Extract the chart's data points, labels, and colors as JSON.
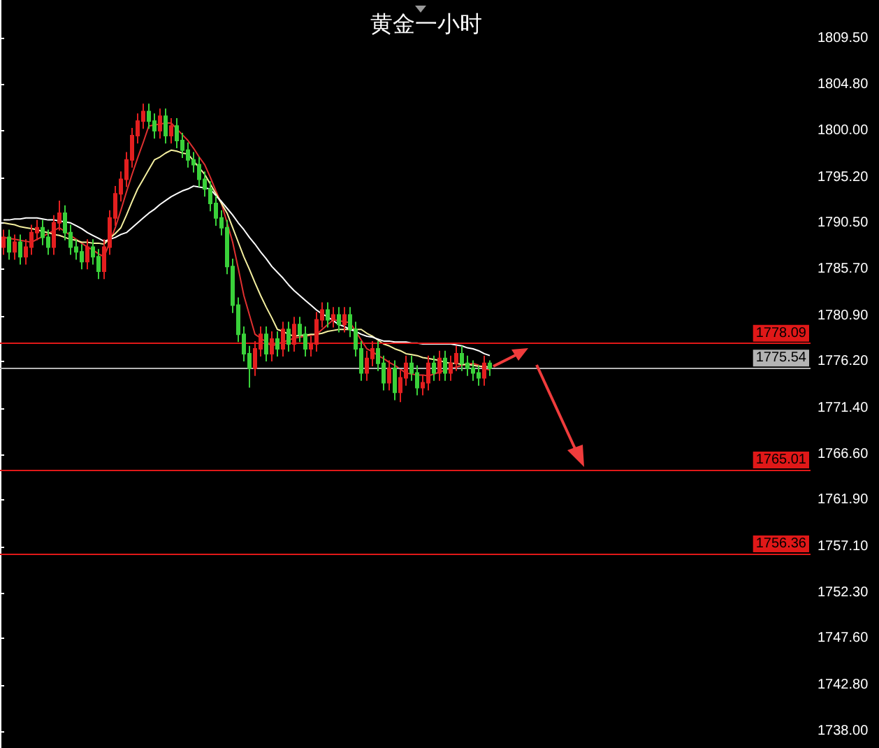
{
  "chart_data": {
    "type": "candlestick",
    "title": "黄金一小时",
    "categories": [
      null,
      null,
      null,
      null,
      null,
      null,
      null,
      null,
      null,
      null,
      null,
      null,
      null,
      null,
      null,
      null,
      null,
      null,
      null,
      null,
      null,
      null,
      null,
      null,
      null,
      null,
      null,
      null,
      null,
      null,
      null,
      null,
      null,
      null,
      null,
      null,
      null,
      null,
      null,
      null,
      null,
      null,
      null,
      null,
      null,
      null,
      null,
      null,
      null,
      null,
      null,
      null,
      null,
      null,
      null,
      null,
      null,
      null,
      null,
      null,
      null,
      null,
      null,
      null,
      null,
      null,
      null,
      null,
      null,
      null,
      null,
      null,
      null,
      null,
      null,
      null,
      null,
      null,
      null,
      null,
      null,
      null,
      null,
      null,
      null,
      null,
      null,
      null
    ],
    "ohlc": [
      [
        1788,
        1789.8,
        1787.2,
        1789
      ],
      [
        1789,
        1789.8,
        1786.7,
        1787.5
      ],
      [
        1787.5,
        1789.3,
        1786.7,
        1788.5
      ],
      [
        1788.5,
        1789.3,
        1786.2,
        1787
      ],
      [
        1787,
        1788.8,
        1786.2,
        1788
      ],
      [
        1788,
        1790.3,
        1787.2,
        1789.5
      ],
      [
        1789.5,
        1790.8,
        1788.7,
        1790
      ],
      [
        1790,
        1790.8,
        1788.2,
        1789
      ],
      [
        1789,
        1789.8,
        1787.2,
        1788
      ],
      [
        1788,
        1791.3,
        1787.2,
        1790.5
      ],
      [
        1790.5,
        1792.8,
        1789.7,
        1791.5
      ],
      [
        1791.5,
        1792.3,
        1788.7,
        1789.5
      ],
      [
        1789.5,
        1790.3,
        1787.2,
        1788
      ],
      [
        1788,
        1788.8,
        1786.7,
        1787.5
      ],
      [
        1787.5,
        1788.3,
        1785.7,
        1786.5
      ],
      [
        1786.5,
        1788.8,
        1785.7,
        1788
      ],
      [
        1788,
        1788.8,
        1786.2,
        1787
      ],
      [
        1787,
        1787.8,
        1784.7,
        1785.5
      ],
      [
        1785.5,
        1788.8,
        1784.7,
        1788
      ],
      [
        1788,
        1791.8,
        1787.2,
        1791
      ],
      [
        1791,
        1794.3,
        1790.2,
        1793.5
      ],
      [
        1793.5,
        1795.8,
        1792.7,
        1795
      ],
      [
        1795,
        1797.8,
        1794.2,
        1797
      ],
      [
        1797,
        1800.3,
        1796.2,
        1799.5
      ],
      [
        1799.5,
        1801.8,
        1798.7,
        1801
      ],
      [
        1801,
        1802.8,
        1800.2,
        1802
      ],
      [
        1802,
        1802.8,
        1800.2,
        1801
      ],
      [
        1801,
        1801.8,
        1799.2,
        1800
      ],
      [
        1800,
        1802.3,
        1799.2,
        1801.5
      ],
      [
        1801.5,
        1802.3,
        1798.7,
        1799.5
      ],
      [
        1799.5,
        1801.3,
        1798.7,
        1800.5
      ],
      [
        1800.5,
        1801.3,
        1798.2,
        1799
      ],
      [
        1799,
        1799.8,
        1797.2,
        1798
      ],
      [
        1798,
        1798.8,
        1796.2,
        1797
      ],
      [
        1797,
        1797.8,
        1795.7,
        1796.5
      ],
      [
        1796.5,
        1797.3,
        1794.2,
        1795
      ],
      [
        1795,
        1795.8,
        1793.2,
        1794
      ],
      [
        1794,
        1794.8,
        1791.7,
        1792.5
      ],
      [
        1792.5,
        1793.3,
        1790.2,
        1791
      ],
      [
        1791,
        1791.8,
        1789.2,
        1790
      ],
      [
        1790,
        1790.8,
        1785.2,
        1786
      ],
      [
        1786,
        1786.8,
        1781.2,
        1782
      ],
      [
        1782,
        1782.8,
        1778.2,
        1779
      ],
      [
        1779,
        1779.8,
        1776.2,
        1777
      ],
      [
        1777,
        1777.8,
        1773.5,
        1775.5
      ],
      [
        1775.5,
        1778.3,
        1774.7,
        1777.5
      ],
      [
        1777.5,
        1779.8,
        1776.7,
        1779
      ],
      [
        1779,
        1779.8,
        1776.2,
        1777
      ],
      [
        1777,
        1779.3,
        1776.2,
        1778.5
      ],
      [
        1778.5,
        1779.3,
        1776.7,
        1777.5
      ],
      [
        1777.5,
        1780.3,
        1776.7,
        1779.5
      ],
      [
        1779.5,
        1780.3,
        1777.2,
        1778
      ],
      [
        1778,
        1780.8,
        1777.2,
        1780
      ],
      [
        1780,
        1780.8,
        1778.2,
        1779
      ],
      [
        1779,
        1779.8,
        1776.7,
        1777.5
      ],
      [
        1777.5,
        1778.8,
        1776.7,
        1778
      ],
      [
        1778,
        1781.3,
        1777.2,
        1780.5
      ],
      [
        1780.5,
        1782.3,
        1779.7,
        1781.5
      ],
      [
        1781.5,
        1782.3,
        1779.7,
        1780.5
      ],
      [
        1780.5,
        1781.8,
        1779.7,
        1781
      ],
      [
        1781,
        1781.8,
        1779.2,
        1780
      ],
      [
        1780,
        1781.8,
        1779.2,
        1781
      ],
      [
        1781,
        1781.8,
        1778.7,
        1779.5
      ],
      [
        1779.5,
        1780.3,
        1776.7,
        1777.5
      ],
      [
        1777.5,
        1778.3,
        1774.2,
        1775
      ],
      [
        1775,
        1777.3,
        1774.2,
        1776.5
      ],
      [
        1776.5,
        1778.3,
        1775.7,
        1777.5
      ],
      [
        1777.5,
        1778.3,
        1775.2,
        1776
      ],
      [
        1776,
        1776.8,
        1773.2,
        1774
      ],
      [
        1774,
        1776.3,
        1773.2,
        1775.5
      ],
      [
        1775.5,
        1776.3,
        1772.2,
        1773
      ],
      [
        1773,
        1775.3,
        1772,
        1774.5
      ],
      [
        1774.5,
        1776.8,
        1773.7,
        1776
      ],
      [
        1776,
        1776.8,
        1774.2,
        1775
      ],
      [
        1775,
        1775.8,
        1772.7,
        1773.5
      ],
      [
        1773.5,
        1774.8,
        1772.7,
        1774
      ],
      [
        1774,
        1776.8,
        1773.2,
        1776
      ],
      [
        1776,
        1776.8,
        1774.2,
        1775
      ],
      [
        1775,
        1777.3,
        1774.2,
        1776.5
      ],
      [
        1776.5,
        1777.3,
        1774.2,
        1775
      ],
      [
        1775,
        1776.8,
        1774.2,
        1776
      ],
      [
        1776,
        1777.8,
        1775.2,
        1777
      ],
      [
        1777,
        1777.8,
        1775.2,
        1776
      ],
      [
        1776,
        1776.8,
        1774.7,
        1775.5
      ],
      [
        1775.5,
        1776.3,
        1774.2,
        1775
      ],
      [
        1775,
        1775.8,
        1773.7,
        1774.5
      ],
      [
        1774.5,
        1776.8,
        1773.7,
        1776
      ],
      [
        1776,
        1776.3,
        1774.7,
        1775.5
      ]
    ],
    "colors": [
      "#e31f1f",
      "#3ad13a",
      "#e31f1f",
      "#3ad13a",
      "#e31f1f",
      "#e31f1f",
      "#e31f1f",
      "#3ad13a",
      "#3ad13a",
      "#e31f1f",
      "#e31f1f",
      "#3ad13a",
      "#3ad13a",
      "#3ad13a",
      "#3ad13a",
      "#e31f1f",
      "#3ad13a",
      "#3ad13a",
      "#e31f1f",
      "#e31f1f",
      "#e31f1f",
      "#e31f1f",
      "#e31f1f",
      "#e31f1f",
      "#e31f1f",
      "#e31f1f",
      "#3ad13a",
      "#3ad13a",
      "#e31f1f",
      "#3ad13a",
      "#e31f1f",
      "#3ad13a",
      "#3ad13a",
      "#3ad13a",
      "#3ad13a",
      "#3ad13a",
      "#3ad13a",
      "#3ad13a",
      "#3ad13a",
      "#3ad13a",
      "#3ad13a",
      "#3ad13a",
      "#3ad13a",
      "#3ad13a",
      "#3ad13a",
      "#e31f1f",
      "#e31f1f",
      "#3ad13a",
      "#e31f1f",
      "#3ad13a",
      "#e31f1f",
      "#3ad13a",
      "#e31f1f",
      "#3ad13a",
      "#3ad13a",
      "#e31f1f",
      "#e31f1f",
      "#e31f1f",
      "#3ad13a",
      "#e31f1f",
      "#3ad13a",
      "#e31f1f",
      "#3ad13a",
      "#3ad13a",
      "#3ad13a",
      "#e31f1f",
      "#e31f1f",
      "#3ad13a",
      "#3ad13a",
      "#e31f1f",
      "#3ad13a",
      "#e31f1f",
      "#e31f1f",
      "#3ad13a",
      "#3ad13a",
      "#e31f1f",
      "#e31f1f",
      "#3ad13a",
      "#e31f1f",
      "#3ad13a",
      "#e31f1f",
      "#e31f1f",
      "#3ad13a",
      "#3ad13a",
      "#3ad13a",
      "#3ad13a",
      "#e31f1f",
      "#3ad13a"
    ],
    "series": [
      {
        "type": "line",
        "color": "#e03030",
        "values": [
          1789,
          1788.9,
          1788.8,
          1788.7,
          1788.6,
          1788.5,
          1788.8,
          1789.1,
          1789.4,
          1789.7,
          1790,
          1789.6,
          1789.2,
          1788.8,
          1788.4,
          1788,
          1787.7,
          1787.3,
          1787,
          1788.5,
          1790,
          1791.8,
          1793.7,
          1795.5,
          1797.2,
          1798.8,
          1800.5,
          1800.6,
          1800.7,
          1800.8,
          1800.8,
          1800.2,
          1799.6,
          1799,
          1798.2,
          1797.3,
          1796.5,
          1795.2,
          1793.8,
          1792.5,
          1790.5,
          1788.5,
          1785.8,
          1783,
          1781,
          1779,
          1778.6,
          1778.2,
          1777.8,
          1778,
          1778.2,
          1778.4,
          1778.6,
          1778.7,
          1778.8,
          1778.9,
          1779,
          1779.5,
          1780,
          1780.5,
          1780.4,
          1780.3,
          1780.2,
          1779.3,
          1778.4,
          1777.5,
          1777.2,
          1776.8,
          1776.5,
          1776.1,
          1775.8,
          1775.4,
          1775,
          1774.9,
          1774.8,
          1774.8,
          1774.7,
          1774.9,
          1775.1,
          1775.3,
          1775.5,
          1775.6,
          1775.8,
          1775.9,
          1776,
          1775.8,
          1775.5,
          1775.3
        ]
      },
      {
        "type": "line",
        "color": "#f5f0a0",
        "values": [
          1790.5,
          1790.4,
          1790.3,
          1790.1,
          1790,
          1789.9,
          1789.8,
          1789.6,
          1789.5,
          1789.3,
          1789.2,
          1789,
          1788.8,
          1788.7,
          1788.5,
          1788.5,
          1788.4,
          1788.4,
          1788.3,
          1788.9,
          1789.4,
          1790,
          1791.3,
          1792.7,
          1794,
          1795,
          1796,
          1797,
          1797.3,
          1797.7,
          1798,
          1797.9,
          1797.7,
          1797.6,
          1796.9,
          1796.2,
          1795.5,
          1794.5,
          1793.5,
          1792.5,
          1791.5,
          1790,
          1788.5,
          1787,
          1785.7,
          1784.3,
          1783,
          1781.8,
          1780.7,
          1779.5,
          1779.3,
          1779,
          1778.8,
          1778.9,
          1778.9,
          1779,
          1779,
          1779.1,
          1779.3,
          1779.4,
          1779.5,
          1779.5,
          1779.5,
          1779.5,
          1779.5,
          1779.1,
          1778.8,
          1778.4,
          1778,
          1777.8,
          1777.5,
          1777.3,
          1777,
          1776.9,
          1776.8,
          1776.6,
          1776.5,
          1776.4,
          1776.3,
          1776.1,
          1776,
          1776,
          1775.9,
          1775.9,
          1775.8,
          1775.7,
          1775.7,
          1775.6
        ]
      },
      {
        "type": "line",
        "color": "#ffffff",
        "values": [
          1790.8,
          1790.8,
          1790.9,
          1790.9,
          1791,
          1791,
          1791,
          1790.9,
          1790.8,
          1790.8,
          1790.7,
          1790.6,
          1790.5,
          1790.2,
          1789.9,
          1789.5,
          1789.2,
          1788.9,
          1788.6,
          1788.8,
          1789,
          1789.3,
          1789.5,
          1790,
          1790.5,
          1791,
          1791.5,
          1791.9,
          1792.4,
          1792.8,
          1793.2,
          1793.5,
          1793.8,
          1794,
          1794.3,
          1794.2,
          1794.1,
          1794,
          1793.3,
          1792.7,
          1792,
          1791.3,
          1790.5,
          1789.8,
          1789,
          1788.3,
          1787.5,
          1786.8,
          1786,
          1785.4,
          1784.8,
          1784.1,
          1783.5,
          1783,
          1782.5,
          1782,
          1781.5,
          1781.1,
          1780.8,
          1780.4,
          1780,
          1779.8,
          1779.5,
          1779.3,
          1779,
          1778.8,
          1778.7,
          1778.5,
          1778.3,
          1778.3,
          1778.2,
          1778.2,
          1778.2,
          1778.1,
          1778.1,
          1778,
          1778,
          1778,
          1778,
          1778,
          1778,
          1777.9,
          1777.8,
          1777.6,
          1777.5,
          1777.3,
          1777,
          1776.8
        ]
      }
    ],
    "ylim": [
      1736.3,
      1813.5
    ],
    "yticks": [
      {
        "value": 1738,
        "label": "1738.00"
      },
      {
        "value": 1742.8,
        "label": "1742.80"
      },
      {
        "value": 1747.6,
        "label": "1747.60"
      },
      {
        "value": 1752.3,
        "label": "1752.30"
      },
      {
        "value": 1757.1,
        "label": "1757.10"
      },
      {
        "value": 1761.9,
        "label": "1761.90"
      },
      {
        "value": 1766.6,
        "label": "1766.60"
      },
      {
        "value": 1771.4,
        "label": "1771.40"
      },
      {
        "value": 1776.2,
        "label": "1776.20"
      },
      {
        "value": 1780.9,
        "label": "1780.90"
      },
      {
        "value": 1785.7,
        "label": "1785.70"
      },
      {
        "value": 1790.5,
        "label": "1790.50"
      },
      {
        "value": 1795.2,
        "label": "1795.20"
      },
      {
        "value": 1800,
        "label": "1800.00"
      },
      {
        "value": 1804.8,
        "label": "1804.80"
      },
      {
        "value": 1809.5,
        "label": "1809.50"
      }
    ],
    "tick_labels": "y",
    "ref_lines": [
      {
        "axis": "y",
        "value": 1778.09,
        "label": "1778.09",
        "color": "#e01818"
      },
      {
        "axis": "y",
        "value": 1775.54,
        "label": "1775.54",
        "color": "#b4b4b4"
      },
      {
        "axis": "y",
        "value": 1765.01,
        "label": "1765.01",
        "color": "#e01818"
      },
      {
        "axis": "y",
        "value": 1756.36,
        "label": "1756.36",
        "color": "#e01818"
      }
    ]
  }
}
